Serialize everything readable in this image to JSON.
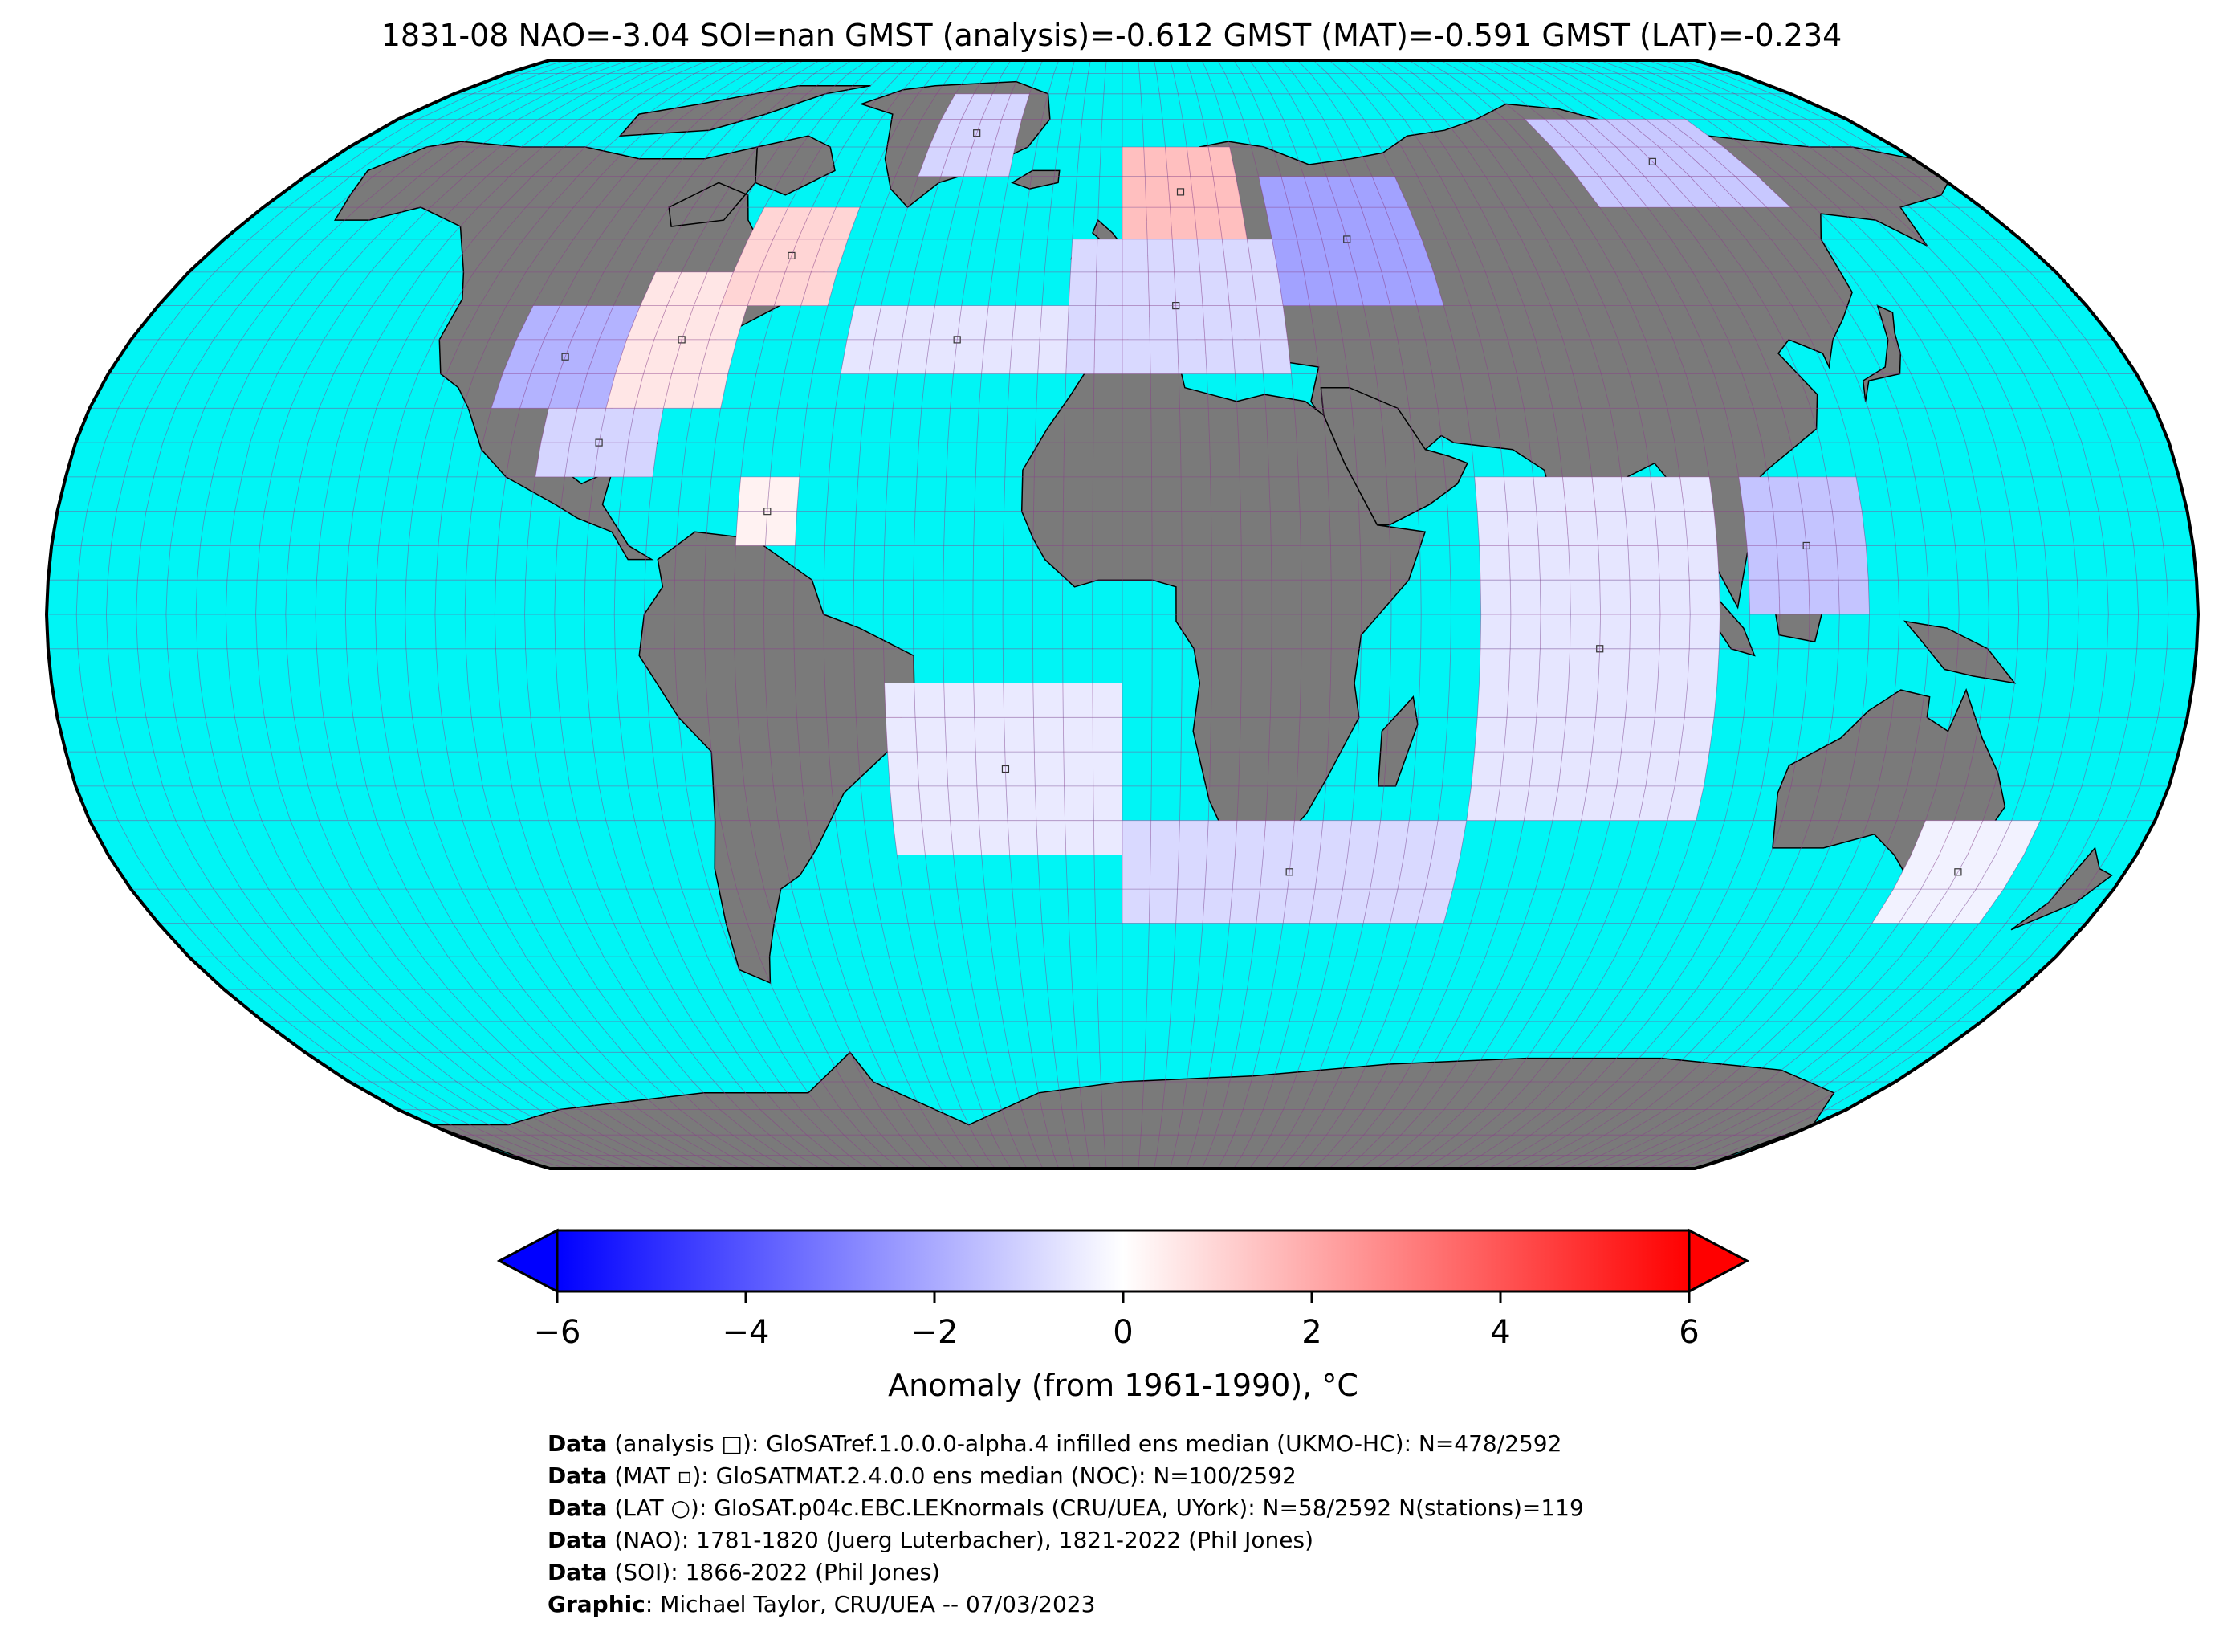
{
  "title": "1831-08 NAO=-3.04 SOI=nan GMST (analysis)=-0.612 GMST (MAT)=-0.591 GMST (LAT)=-0.234",
  "colors": {
    "ocean": "#00f5f5",
    "land": "#7a7a7a",
    "grid": "#8a3d8a",
    "coast": "#000000",
    "cold": "#0000ff",
    "neutral": "#ffffff",
    "warm": "#ff0000"
  },
  "map": {
    "projection": "Robinson",
    "anomaly_cells": [
      {
        "region": "North America interior",
        "lon": [
          -110,
          -90
        ],
        "lat": [
          30,
          45
        ],
        "anomaly": -1.8
      },
      {
        "region": "North America east",
        "lon": [
          -90,
          -70
        ],
        "lat": [
          30,
          50
        ],
        "anomaly": 0.6
      },
      {
        "region": "Labrador",
        "lon": [
          -75,
          -55
        ],
        "lat": [
          45,
          60
        ],
        "anomaly": 1.0
      },
      {
        "region": "Gulf of Mexico",
        "lon": [
          -100,
          -80
        ],
        "lat": [
          20,
          30
        ],
        "anomaly": -1.0
      },
      {
        "region": "Caribbean",
        "lon": [
          -65,
          -55
        ],
        "lat": [
          10,
          20
        ],
        "anomaly": 0.3
      },
      {
        "region": "North Atlantic",
        "lon": [
          -50,
          -10
        ],
        "lat": [
          35,
          45
        ],
        "anomaly": -0.6
      },
      {
        "region": "Greenland",
        "lon": [
          -45,
          -25
        ],
        "lat": [
          65,
          80
        ],
        "anomaly": -1.0
      },
      {
        "region": "Scandinavia",
        "lon": [
          0,
          25
        ],
        "lat": [
          55,
          70
        ],
        "anomaly": 1.5
      },
      {
        "region": "Europe",
        "lon": [
          -10,
          30
        ],
        "lat": [
          35,
          55
        ],
        "anomaly": -0.9
      },
      {
        "region": "Russia",
        "lon": [
          30,
          60
        ],
        "lat": [
          45,
          65
        ],
        "anomaly": -2.2
      },
      {
        "region": "Siberia",
        "lon": [
          100,
          140
        ],
        "lat": [
          60,
          75
        ],
        "anomaly": -1.3
      },
      {
        "region": "Indian Ocean",
        "lon": [
          60,
          100
        ],
        "lat": [
          -30,
          20
        ],
        "anomaly": -0.6
      },
      {
        "region": "South China Sea",
        "lon": [
          105,
          125
        ],
        "lat": [
          0,
          20
        ],
        "anomaly": -1.4
      },
      {
        "region": "South Atlantic",
        "lon": [
          -40,
          0
        ],
        "lat": [
          -35,
          -10
        ],
        "anomaly": -0.5
      },
      {
        "region": "Southern Ocean",
        "lon": [
          0,
          60
        ],
        "lat": [
          -45,
          -30
        ],
        "anomaly": -0.9
      },
      {
        "region": "Tasman",
        "lon": [
          140,
          160
        ],
        "lat": [
          -45,
          -30
        ],
        "anomaly": -0.3
      }
    ]
  },
  "chart_data": {
    "type": "heatmap",
    "title": "1831-08 NAO=-3.04 SOI=nan GMST (analysis)=-0.612 GMST (MAT)=-0.591 GMST (LAT)=-0.234",
    "colorbar": {
      "label": "Anomaly (from 1961-1990), °C",
      "ticks": [
        "−6",
        "−4",
        "−2",
        "0",
        "2",
        "4",
        "6"
      ],
      "range": [
        -6,
        6
      ],
      "colormap": "bwr",
      "extend": "both"
    }
  },
  "credits": [
    {
      "bold": "Data",
      "text": " (analysis □): GloSATref.1.0.0.0-alpha.4 infilled ens median (UKMO-HC): N=478/2592"
    },
    {
      "bold": "Data",
      "text": " (MAT ▫): GloSATMAT.2.4.0.0 ens median (NOC): N=100/2592"
    },
    {
      "bold": "Data",
      "text": " (LAT ○): GloSAT.p04c.EBC.LEKnormals (CRU/UEA, UYork): N=58/2592 N(stations)=119"
    },
    {
      "bold": "Data",
      "text": " (NAO): 1781-1820 (Juerg Luterbacher), 1821-2022 (Phil Jones)"
    },
    {
      "bold": "Data",
      "text": " (SOI): 1866-2022 (Phil Jones)"
    },
    {
      "bold": "Graphic",
      "text": ": Michael Taylor, CRU/UEA -- 07/03/2023"
    }
  ]
}
